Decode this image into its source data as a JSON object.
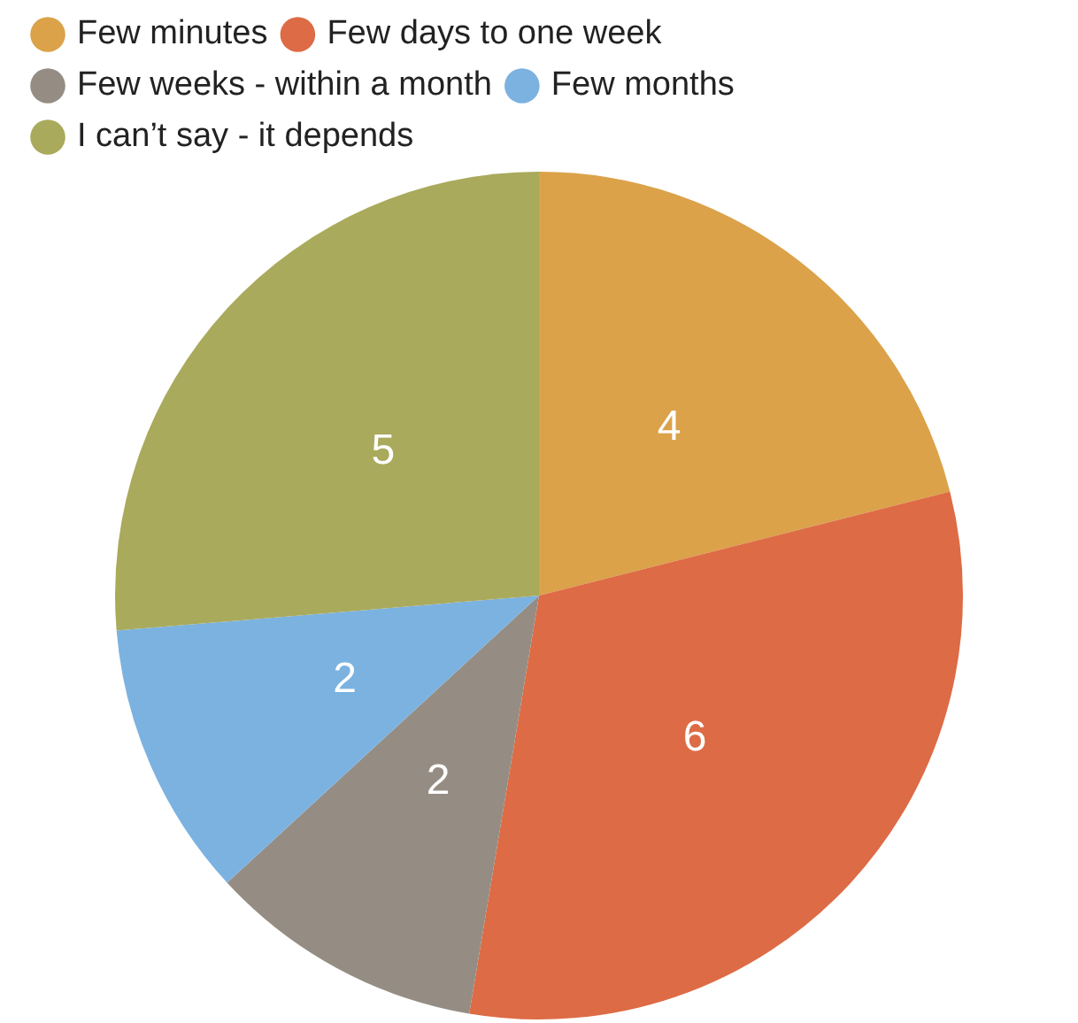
{
  "chart_data": {
    "type": "pie",
    "categories": [
      "Few minutes",
      "Few days to one week",
      "Few weeks - within a month",
      "Few months",
      "I can’t say - it depends"
    ],
    "values": [
      4,
      6,
      2,
      2,
      5
    ],
    "colors": [
      "#dba24a",
      "#dd6b45",
      "#958d83",
      "#7cb2e0",
      "#a9aa5b"
    ],
    "data_labels": true,
    "legend": "top"
  }
}
